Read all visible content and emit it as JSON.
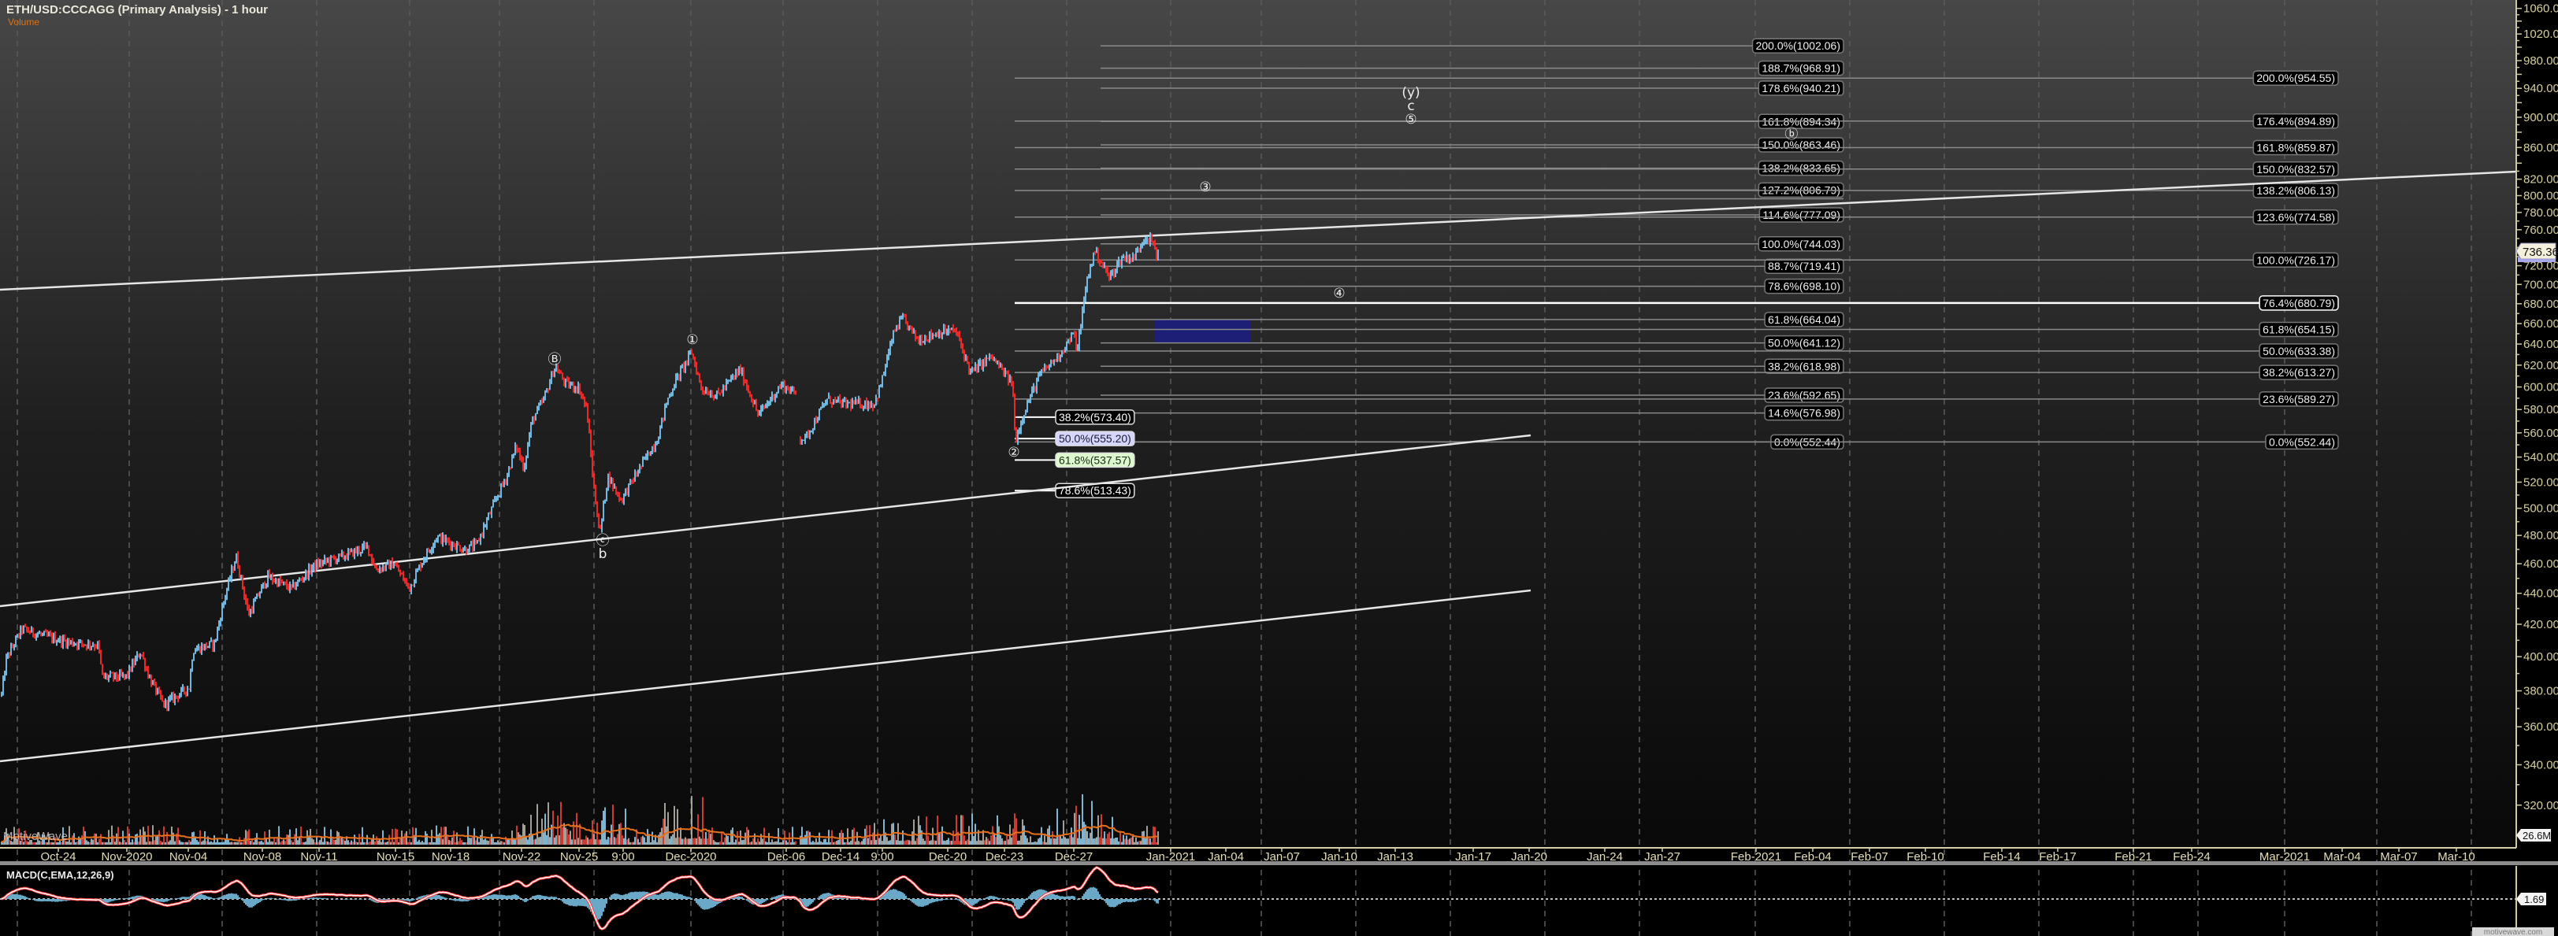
{
  "header": {
    "title": "ETH/USD:CCCAGG (Primary Analysis) - 1 hour",
    "volume_label": "Volume"
  },
  "watermarks": {
    "pane": "MotiveWave",
    "footer": "motivewave.com"
  },
  "price_axis": {
    "scale": "log",
    "ticks": [
      "1060.00",
      "1020.00",
      "980.00",
      "940.00",
      "900.00",
      "860.00",
      "820.00",
      "800.00",
      "780.00",
      "760.00",
      "720.00",
      "700.00",
      "680.00",
      "660.00",
      "640.00",
      "620.00",
      "600.00",
      "580.00",
      "560.00",
      "540.00",
      "520.00",
      "500.00",
      "480.00",
      "460.00",
      "440.00",
      "420.00",
      "400.00",
      "380.00",
      "360.00",
      "340.00",
      "320.00"
    ],
    "last_price": "736.36"
  },
  "volume_axis": {
    "last_value": "26.6M"
  },
  "macd": {
    "label": "MACD(C,EMA,12,26,9)",
    "last_value": "1.69"
  },
  "colors": {
    "up_bar": "#7cc6f2",
    "down_bar": "#ff2a2a",
    "volume_ma": "#e8701a",
    "macd_line": "#ffffff",
    "signal_line": "#ff3a3a",
    "histogram": "#6aa8c8",
    "target_zone": "#1c1f7a",
    "axis_text": "#d8cfa0"
  },
  "chart_data": {
    "type": "candlestick",
    "x_ticks": [
      "Oct-24",
      "Nov-2020",
      "Nov-04",
      "Nov-08",
      "Nov-11",
      "Nov-15",
      "Nov-18",
      "Nov-22",
      "Nov-25",
      "9:00",
      "Dec-2020",
      "Dec-06",
      "Dec-14",
      "9:00",
      "Dec-20",
      "Dec-23",
      "Dec-27",
      "Jan-2021",
      "Jan-04",
      "Jan-07",
      "Jan-10",
      "Jan-13",
      "Jan-17",
      "Jan-20",
      "Jan-24",
      "Jan-27",
      "Feb-2021",
      "Feb-04",
      "Feb-07",
      "Feb-10",
      "Feb-14",
      "Feb-17",
      "Feb-21",
      "Feb-24",
      "Mar-2021",
      "Mar-04",
      "Mar-07",
      "Mar-10"
    ],
    "ylim": [
      310,
      1070
    ],
    "price_path": [
      [
        "10-21 02",
        378
      ],
      [
        "10-21 08",
        399
      ],
      [
        "10-22 03",
        417
      ],
      [
        "10-23 05",
        413
      ],
      [
        "10-25 00",
        409
      ],
      [
        "10-28 16",
        407
      ],
      [
        "10-29 03",
        388
      ],
      [
        "10-31 21",
        388
      ],
      [
        "11-01 16",
        403
      ],
      [
        "11-02 03",
        387
      ],
      [
        "11-02 19",
        372
      ],
      [
        "11-04 01",
        382
      ],
      [
        "11-04 06",
        404
      ],
      [
        "11-05 10",
        408
      ],
      [
        "11-05 23",
        437
      ],
      [
        "11-06 14",
        465
      ],
      [
        "11-07 06",
        426
      ],
      [
        "11-08 07",
        451
      ],
      [
        "11-09 13",
        443
      ],
      [
        "11-10 17",
        458
      ],
      [
        "11-11 10",
        462
      ],
      [
        "11-12 06",
        465
      ],
      [
        "11-13 13",
        472
      ],
      [
        "11-13 23",
        456
      ],
      [
        "11-14 22",
        460
      ],
      [
        "11-15 18",
        443
      ],
      [
        "11-16 10",
        461
      ],
      [
        "11-17 06",
        479
      ],
      [
        "11-18 19",
        470
      ],
      [
        "11-19 11",
        473
      ],
      [
        "11-21 04",
        525
      ],
      [
        "11-21 17",
        549
      ],
      [
        "11-22 03",
        531
      ],
      [
        "11-22 13",
        570
      ],
      [
        "11-23 04",
        589
      ],
      [
        "11-23 18",
        619
      ],
      [
        "11-24 07",
        603
      ],
      [
        "11-25 00",
        599
      ],
      [
        "11-25 10",
        580
      ],
      [
        "11-25 19",
        515
      ],
      [
        "11-26 03",
        481
      ],
      [
        "11-26 13",
        525
      ],
      [
        "11-27 06",
        506
      ],
      [
        "11-28 06",
        531
      ],
      [
        "11-29 05",
        555
      ],
      [
        "11-29 18",
        589
      ],
      [
        "11-30 06",
        608
      ],
      [
        "12-01 01",
        632
      ],
      [
        "12-01 13",
        599
      ],
      [
        "12-02 09",
        592
      ],
      [
        "12-03 14",
        616
      ],
      [
        "12-04 13",
        575
      ],
      [
        "12-05 18",
        602
      ],
      [
        "12-07 10",
        594
      ],
      [
        "12-07 23",
        556
      ],
      [
        "12-08 19",
        555
      ],
      [
        "12-12 01",
        589
      ],
      [
        "12-14 03",
        585
      ],
      [
        "12-15 21",
        585
      ],
      [
        "12-16 05",
        599
      ],
      [
        "12-17 00",
        652
      ],
      [
        "12-17 11",
        665
      ],
      [
        "12-18 08",
        644
      ],
      [
        "12-19 15",
        652
      ],
      [
        "12-20 10",
        653
      ],
      [
        "12-21 05",
        613
      ],
      [
        "12-22 07",
        628
      ],
      [
        "12-23 11",
        603
      ],
      [
        "12-23 15",
        553
      ],
      [
        "12-24 03",
        578
      ],
      [
        "12-25 01",
        611
      ],
      [
        "12-26 02",
        628
      ],
      [
        "12-27 00",
        650
      ],
      [
        "12-27 04",
        633
      ],
      [
        "12-27 17",
        707
      ],
      [
        "12-28 02",
        737
      ],
      [
        "12-28 20",
        707
      ],
      [
        "12-29 12",
        729
      ],
      [
        "12-30 03",
        729
      ],
      [
        "12-30 16",
        753
      ],
      [
        "12-31 02",
        746
      ],
      [
        "12-31 06",
        729
      ],
      [
        "12-31 08",
        736
      ]
    ],
    "fib_extension_a": [
      {
        "label": "200.0%(1002.06)",
        "price": 1002.06
      },
      {
        "label": "188.7%(968.91)",
        "price": 968.91
      },
      {
        "label": "178.6%(940.21)",
        "price": 940.21
      },
      {
        "label": "161.8%(894.34)",
        "price": 894.34
      },
      {
        "label": "150.0%(863.46)",
        "price": 863.46
      },
      {
        "label": "138.2%(833.65)",
        "price": 833.65
      },
      {
        "label": "127.2%(806.79)",
        "price": 806.79
      },
      {
        "label": "114.6%(777.09)",
        "price": 777.09
      },
      {
        "label": "100.0%(744.03)",
        "price": 744.03
      },
      {
        "label": "88.7%(719.41)",
        "price": 719.41
      },
      {
        "label": "78.6%(698.10)",
        "price": 698.1
      },
      {
        "label": "61.8%(664.04)",
        "price": 664.04
      },
      {
        "label": "50.0%(641.12)",
        "price": 641.12
      },
      {
        "label": "38.2%(618.98)",
        "price": 618.98
      },
      {
        "label": "23.6%(592.65)",
        "price": 592.65
      },
      {
        "label": "14.6%(576.98)",
        "price": 576.98
      },
      {
        "label": "0.0%(552.44)",
        "price": 552.44
      }
    ],
    "fib_extension_b": [
      {
        "label": "200.0%(954.55)",
        "price": 954.55
      },
      {
        "label": "176.4%(894.89)",
        "price": 894.89
      },
      {
        "label": "161.8%(859.87)",
        "price": 859.87
      },
      {
        "label": "150.0%(832.57)",
        "price": 832.57
      },
      {
        "label": "138.2%(806.13)",
        "price": 806.13
      },
      {
        "label": "123.6%(774.58)",
        "price": 774.58
      },
      {
        "label": "100.0%(726.17)",
        "price": 726.17
      },
      {
        "label": "76.4%(680.79)",
        "price": 680.79,
        "highlight": true
      },
      {
        "label": "61.8%(654.15)",
        "price": 654.15
      },
      {
        "label": "50.0%(633.38)",
        "price": 633.38
      },
      {
        "label": "38.2%(613.27)",
        "price": 613.27
      },
      {
        "label": "23.6%(589.27)",
        "price": 589.27
      },
      {
        "label": "0.0%(552.44)",
        "price": 552.44
      }
    ],
    "fib_retracement": [
      {
        "label": "38.2%(573.40)",
        "price": 573.4,
        "bg": "#000000",
        "fg": "#ffffff"
      },
      {
        "label": "50.0%(555.20)",
        "price": 555.2,
        "bg": "#d4d6ff",
        "fg": "#1a1a2a"
      },
      {
        "label": "61.8%(537.57)",
        "price": 537.57,
        "bg": "#dcf8cc",
        "fg": "#1a2a1a"
      },
      {
        "label": "78.6%(513.43)",
        "price": 513.43,
        "bg": "#000000",
        "fg": "#ffffff"
      }
    ],
    "target_zone": {
      "low": 641.12,
      "high": 664.04
    },
    "wave_labels": [
      "(y)",
      "c",
      "⑤",
      "③",
      "④",
      "①",
      "Ⓑ",
      "ⓒ",
      "b",
      "②",
      "ⓑ"
    ]
  }
}
